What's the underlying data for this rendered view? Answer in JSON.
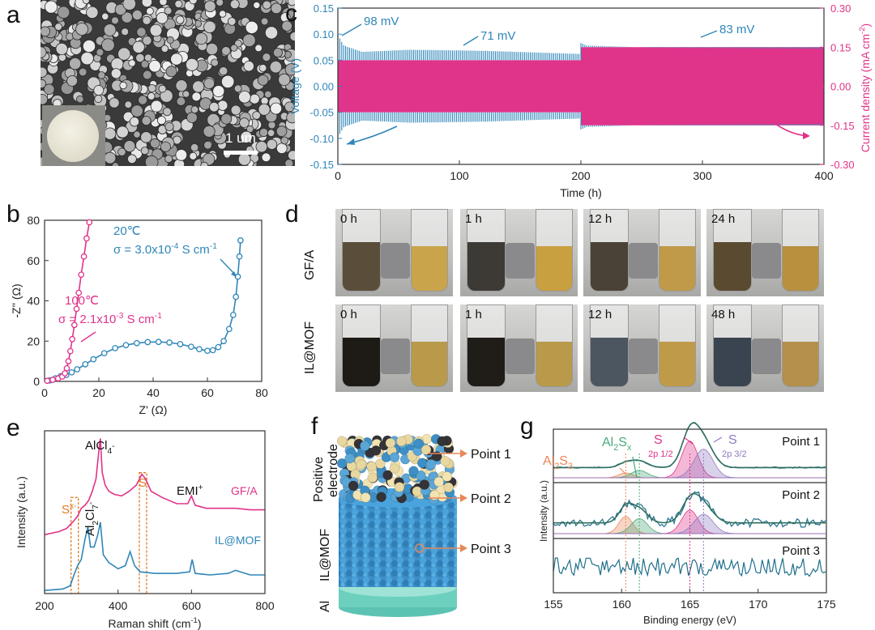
{
  "panels": {
    "a": {
      "letter": "a",
      "scale_bar": "1 um"
    },
    "b": {
      "letter": "b"
    },
    "c": {
      "letter": "c"
    },
    "d": {
      "letter": "d",
      "rows": [
        "GF/A",
        "IL@MOF"
      ],
      "times_row1": [
        "0 h",
        "1 h",
        "12 h",
        "24 h"
      ],
      "times_row2": [
        "0 h",
        "1 h",
        "12 h",
        "48 h"
      ]
    },
    "e": {
      "letter": "e"
    },
    "f": {
      "letter": "f",
      "layers": [
        "Positive electrode",
        "IL@MOF",
        "Al"
      ],
      "points": [
        "Point 1",
        "Point 2",
        "Point 3"
      ]
    },
    "g": {
      "letter": "g"
    }
  },
  "chart_data": [
    {
      "id": "b",
      "type": "scatter",
      "xlabel": "Z' (Ω)",
      "ylabel": "-Z'' (Ω)",
      "xlim": [
        0,
        80
      ],
      "ylim": [
        0,
        80
      ],
      "xticks": [
        "0",
        "20",
        "40",
        "60",
        "80"
      ],
      "yticks": [
        "0",
        "20",
        "40",
        "60",
        "80"
      ],
      "colors": {
        "s20": "#2f86b8",
        "s100": "#e0338a"
      },
      "annotations": {
        "s20_temp": "20℃",
        "s20_sigma_a": "σ = 3.0x10",
        "s20_sigma_exp": "-4",
        "s20_sigma_b": " S cm",
        "s20_sigma_unit_exp": "-1",
        "s100_temp": "100℃",
        "s100_sigma_a": "σ = 2.1x10",
        "s100_sigma_exp": "-3",
        "s100_sigma_b": " S cm",
        "s100_sigma_unit_exp": "-1"
      },
      "series": [
        {
          "key": "s20",
          "x": [
            2,
            4,
            6,
            8,
            10,
            12,
            15,
            18,
            22,
            26,
            30,
            34,
            38,
            42,
            46,
            50,
            54,
            57,
            60,
            62,
            64,
            66,
            68,
            69.5,
            70.5,
            71.2,
            71.8,
            72.2
          ],
          "y": [
            0.5,
            1.5,
            2.6,
            3.2,
            4.5,
            6,
            8.5,
            11,
            14,
            16.5,
            18,
            19,
            19.5,
            19.6,
            19.3,
            18.5,
            17.2,
            16,
            15.2,
            15.5,
            17,
            20,
            26,
            33,
            42,
            52,
            62,
            70
          ]
        },
        {
          "key": "s100",
          "x": [
            1,
            3,
            5,
            6.5,
            7.5,
            8.2,
            8.8,
            9.5,
            10.2,
            11,
            11.8,
            12.6,
            13.5,
            14.5,
            15.5,
            16.5
          ],
          "y": [
            0.3,
            0.8,
            1.5,
            2.4,
            4,
            6.5,
            10,
            15,
            21,
            28,
            36,
            44,
            53,
            62,
            71,
            79
          ]
        }
      ]
    },
    {
      "id": "c",
      "type": "line",
      "xlabel": "Time (h)",
      "ylabel": "Voltage (V)",
      "y2label": "Current density (mA cm",
      "y2label_exp": "-2",
      "y2label_end": ")",
      "xlim": [
        0,
        400
      ],
      "ylim": [
        -0.15,
        0.15
      ],
      "y2lim": [
        -0.3,
        0.3
      ],
      "xticks": [
        "0",
        "100",
        "200",
        "300",
        "400"
      ],
      "yticks": [
        "0.15",
        "0.10",
        "0.05",
        "0.00",
        "-0.05",
        "-0.10",
        "-0.15"
      ],
      "y2ticks": [
        "0.30",
        "0.15",
        "0.00",
        "-0.15",
        "-0.30"
      ],
      "annotations": [
        "98 mV",
        "71 mV",
        "83 mV"
      ],
      "colors": {
        "voltage": "#2f86b8",
        "current": "#e0338a"
      },
      "voltage_envelope": {
        "t": [
          0,
          5,
          20,
          60,
          120,
          199,
          200,
          205,
          260,
          330,
          400
        ],
        "upper": [
          0.098,
          0.078,
          0.066,
          0.07,
          0.068,
          0.062,
          0.083,
          0.078,
          0.074,
          0.073,
          0.072
        ],
        "lower": [
          -0.098,
          -0.078,
          -0.066,
          -0.07,
          -0.068,
          -0.062,
          -0.083,
          -0.078,
          -0.074,
          -0.073,
          -0.072
        ]
      },
      "current_density": [
        {
          "t_start": 0,
          "t_end": 200,
          "value": 0.1
        },
        {
          "t_start": 200,
          "t_end": 400,
          "value": 0.15
        }
      ]
    },
    {
      "id": "e",
      "type": "line",
      "xlabel": "Raman shift (cm",
      "xlabel_exp": "-1",
      "xlabel_end": ")",
      "ylabel": "Intensity (a.u.)",
      "xlim": [
        200,
        800
      ],
      "xticks": [
        "200",
        "400",
        "600",
        "800"
      ],
      "labels": {
        "alcl4": "AlCl",
        "alcl4_sub": "4",
        "alcl4_sup": "-",
        "al2cl7": "Al",
        "al2cl7_sub1": "2",
        "al2cl7_mid": "Cl",
        "al2cl7_sub2": "7",
        "al2cl7_sup": "-",
        "s": "S",
        "sx": "S",
        "sx_sup": "x-",
        "emi": "EMI",
        "emi_sup": "+"
      },
      "series": [
        {
          "name": "GF/A",
          "color": "#e0338a",
          "x": [
            200,
            240,
            260,
            280,
            290,
            300,
            310,
            320,
            330,
            340,
            347,
            352,
            357,
            365,
            375,
            390,
            410,
            430,
            450,
            465,
            475,
            490,
            520,
            560,
            590,
            600,
            610,
            640,
            680,
            720,
            760,
            800
          ],
          "y": [
            0.38,
            0.4,
            0.42,
            0.47,
            0.5,
            0.55,
            0.57,
            0.6,
            0.66,
            0.74,
            0.9,
            1.0,
            0.78,
            0.7,
            0.66,
            0.64,
            0.63,
            0.66,
            0.7,
            0.77,
            0.74,
            0.66,
            0.62,
            0.58,
            0.58,
            0.63,
            0.57,
            0.55,
            0.55,
            0.55,
            0.54,
            0.54
          ]
        },
        {
          "name": "IL@MOF",
          "color": "#2f86b8",
          "x": [
            200,
            250,
            270,
            280,
            290,
            300,
            310,
            318,
            325,
            335,
            345,
            352,
            360,
            375,
            400,
            420,
            433,
            445,
            460,
            500,
            560,
            595,
            602,
            610,
            650,
            700,
            720,
            760,
            800
          ],
          "y": [
            0.02,
            0.03,
            0.05,
            0.12,
            0.18,
            0.22,
            0.35,
            0.43,
            0.3,
            0.3,
            0.38,
            0.46,
            0.25,
            0.2,
            0.16,
            0.18,
            0.27,
            0.18,
            0.14,
            0.13,
            0.13,
            0.14,
            0.22,
            0.13,
            0.12,
            0.13,
            0.15,
            0.12,
            0.12
          ]
        }
      ]
    },
    {
      "id": "g",
      "type": "line",
      "xlabel": "Binding energy (eV)",
      "ylabel": "Intensity (a.u.)",
      "xlim": [
        155,
        175
      ],
      "xticks": [
        "155",
        "160",
        "165",
        "170",
        "175"
      ],
      "panels": [
        "Point 1",
        "Point 2",
        "Point 3"
      ],
      "peak_labels": {
        "al2s3": "Al",
        "al2s3_sub1": "2",
        "al2s3_mid": "S",
        "al2s3_sub2": "3",
        "al2sx": "Al",
        "al2sx_sub1": "2",
        "al2sx_mid": "S",
        "al2sx_sub2": "x",
        "s12": "S",
        "s12_sub": "2p 1/2",
        "s32": "S",
        "s32_sub": "2p 3/2"
      },
      "reference_lines_eV": [
        160.3,
        161.3,
        165.0,
        166.0
      ],
      "colors": {
        "data": "#1f6f8b",
        "fit": "#2f6f5f",
        "al2s3": "#e8875a",
        "al2sx": "#4aa97a",
        "s12": "#e0338a",
        "s32": "#8f7ac0"
      }
    }
  ]
}
